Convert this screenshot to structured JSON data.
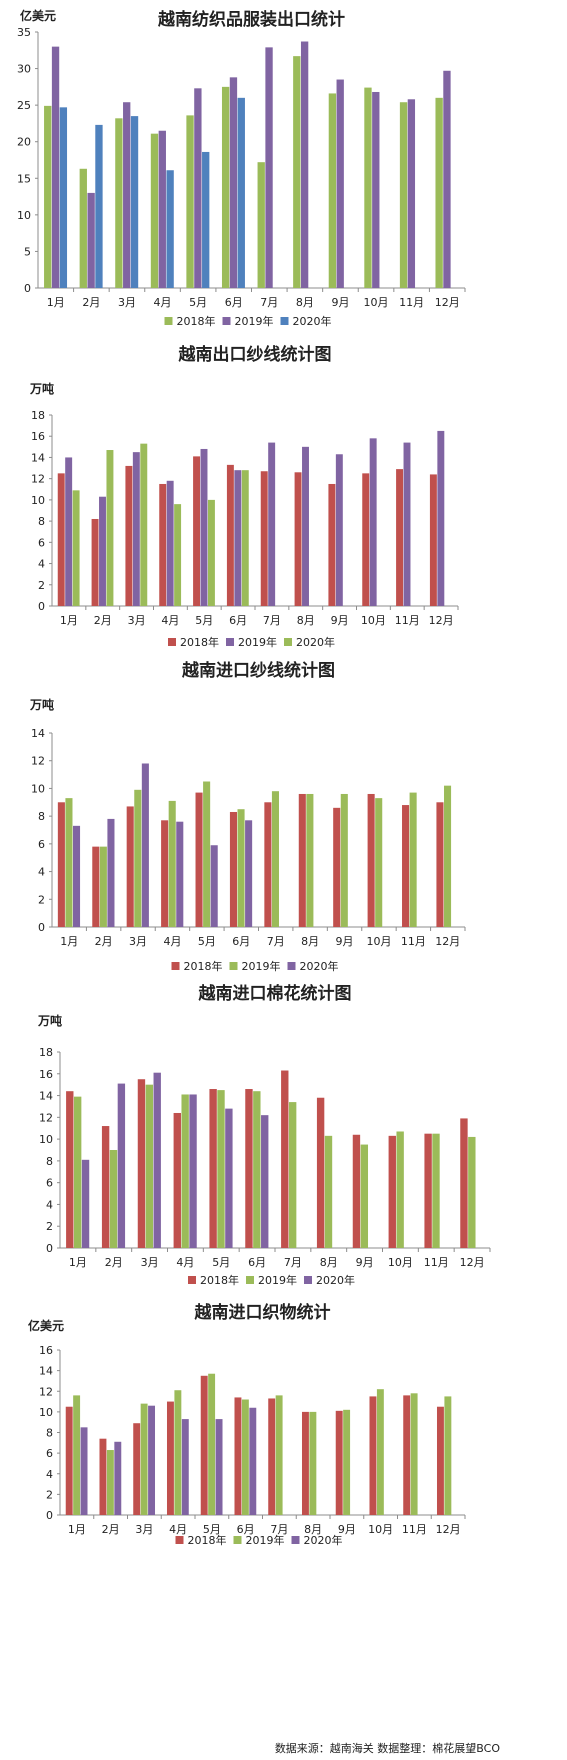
{
  "source_note": "数据来源：越南海关  数据整理：棉花展望BCO",
  "colors": {
    "red": "#c0504d",
    "purple": "#8064a2",
    "green": "#9bbb59",
    "blue": "#4f81bd"
  },
  "chart_data": [
    {
      "type": "bar",
      "title": "越南纺织品服装出口统计",
      "ylabel": "亿美元",
      "ylim": [
        0,
        35
      ],
      "yticks": [
        0,
        5,
        10,
        15,
        20,
        25,
        30,
        35
      ],
      "categories": [
        "1月",
        "2月",
        "3月",
        "4月",
        "5月",
        "6月",
        "7月",
        "8月",
        "9月",
        "10月",
        "11月",
        "12月"
      ],
      "legend_position": "bottom",
      "series": [
        {
          "name": "2018年",
          "color": "#9bbb59",
          "values": [
            24.9,
            16.3,
            23.2,
            21.1,
            23.6,
            27.5,
            17.2,
            31.7,
            26.6,
            27.4,
            25.4,
            26.0
          ]
        },
        {
          "name": "2019年",
          "color": "#8064a2",
          "values": [
            33.0,
            13.0,
            25.4,
            21.5,
            27.3,
            28.8,
            32.9,
            33.7,
            28.5,
            26.8,
            25.8,
            29.7
          ]
        },
        {
          "name": "2020年",
          "color": "#4f81bd",
          "values": [
            24.7,
            22.3,
            23.5,
            16.1,
            18.6,
            26.0,
            null,
            null,
            null,
            null,
            null,
            null
          ]
        }
      ]
    },
    {
      "type": "bar",
      "title": "越南出口纱线统计图",
      "ylabel": "万吨",
      "ylim": [
        0,
        18
      ],
      "yticks": [
        0,
        2,
        4,
        6,
        8,
        10,
        12,
        14,
        16,
        18
      ],
      "categories": [
        "1月",
        "2月",
        "3月",
        "4月",
        "5月",
        "6月",
        "7月",
        "8月",
        "9月",
        "10月",
        "11月",
        "12月"
      ],
      "legend_position": "bottom",
      "series": [
        {
          "name": "2018年",
          "color": "#c0504d",
          "values": [
            12.5,
            8.2,
            13.2,
            11.5,
            14.1,
            13.3,
            12.7,
            12.6,
            11.5,
            12.5,
            12.9,
            12.4
          ]
        },
        {
          "name": "2019年",
          "color": "#8064a2",
          "values": [
            14.0,
            10.3,
            14.5,
            11.8,
            14.8,
            12.8,
            15.4,
            15.0,
            14.3,
            15.8,
            15.4,
            16.5
          ]
        },
        {
          "name": "2020年",
          "color": "#9bbb59",
          "values": [
            10.9,
            14.7,
            15.3,
            9.6,
            10.0,
            12.8,
            null,
            null,
            null,
            null,
            null,
            null
          ]
        }
      ]
    },
    {
      "type": "bar",
      "title": "越南进口纱线统计图",
      "ylabel": "万吨",
      "ylim": [
        0,
        14
      ],
      "yticks": [
        0,
        2,
        4,
        6,
        8,
        10,
        12,
        14
      ],
      "categories": [
        "1月",
        "2月",
        "3月",
        "4月",
        "5月",
        "6月",
        "7月",
        "8月",
        "9月",
        "10月",
        "11月",
        "12月"
      ],
      "legend_position": "bottom",
      "series": [
        {
          "name": "2018年",
          "color": "#c0504d",
          "values": [
            9.0,
            5.8,
            8.7,
            7.7,
            9.7,
            8.3,
            9.0,
            9.6,
            8.6,
            9.6,
            8.8,
            9.0
          ]
        },
        {
          "name": "2019年",
          "color": "#9bbb59",
          "values": [
            9.3,
            5.8,
            9.9,
            9.1,
            10.5,
            8.5,
            9.8,
            9.6,
            9.6,
            9.3,
            9.7,
            10.2
          ]
        },
        {
          "name": "2020年",
          "color": "#8064a2",
          "values": [
            7.3,
            7.8,
            11.8,
            7.6,
            5.9,
            7.7,
            null,
            null,
            null,
            null,
            null,
            null
          ]
        }
      ]
    },
    {
      "type": "bar",
      "title": "越南进口棉花统计图",
      "ylabel": "万吨",
      "ylim": [
        0,
        18
      ],
      "yticks": [
        0,
        2,
        4,
        6,
        8,
        10,
        12,
        14,
        16,
        18
      ],
      "categories": [
        "1月",
        "2月",
        "3月",
        "4月",
        "5月",
        "6月",
        "7月",
        "8月",
        "9月",
        "10月",
        "11月",
        "12月"
      ],
      "legend_position": "bottom",
      "series": [
        {
          "name": "2018年",
          "color": "#c0504d",
          "values": [
            14.4,
            11.2,
            15.5,
            12.4,
            14.6,
            14.6,
            16.3,
            13.8,
            10.4,
            10.3,
            10.5,
            11.9
          ]
        },
        {
          "name": "2019年",
          "color": "#9bbb59",
          "values": [
            13.9,
            9.0,
            15.0,
            14.1,
            14.5,
            14.4,
            13.4,
            10.3,
            9.5,
            10.7,
            10.5,
            10.2
          ]
        },
        {
          "name": "2020年",
          "color": "#8064a2",
          "values": [
            8.1,
            15.1,
            16.1,
            14.1,
            12.8,
            12.2,
            null,
            null,
            null,
            null,
            null,
            null
          ]
        }
      ]
    },
    {
      "type": "bar",
      "title": "越南进口织物统计",
      "ylabel": "亿美元",
      "ylim": [
        0,
        16
      ],
      "yticks": [
        0,
        2,
        4,
        6,
        8,
        10,
        12,
        14,
        16
      ],
      "categories": [
        "1月",
        "2月",
        "3月",
        "4月",
        "5月",
        "6月",
        "7月",
        "8月",
        "9月",
        "10月",
        "11月",
        "12月"
      ],
      "legend_position": "bottom",
      "series": [
        {
          "name": "2018年",
          "color": "#c0504d",
          "values": [
            10.5,
            7.4,
            8.9,
            11.0,
            13.5,
            11.4,
            11.3,
            10.0,
            10.1,
            11.5,
            11.6,
            10.5
          ]
        },
        {
          "name": "2019年",
          "color": "#9bbb59",
          "values": [
            11.6,
            6.3,
            10.8,
            12.1,
            13.7,
            11.2,
            11.6,
            10.0,
            10.2,
            12.2,
            11.8,
            11.5
          ]
        },
        {
          "name": "2020年",
          "color": "#8064a2",
          "values": [
            8.5,
            7.1,
            10.6,
            9.3,
            9.3,
            10.4,
            null,
            null,
            null,
            null,
            null,
            null
          ]
        }
      ]
    }
  ]
}
